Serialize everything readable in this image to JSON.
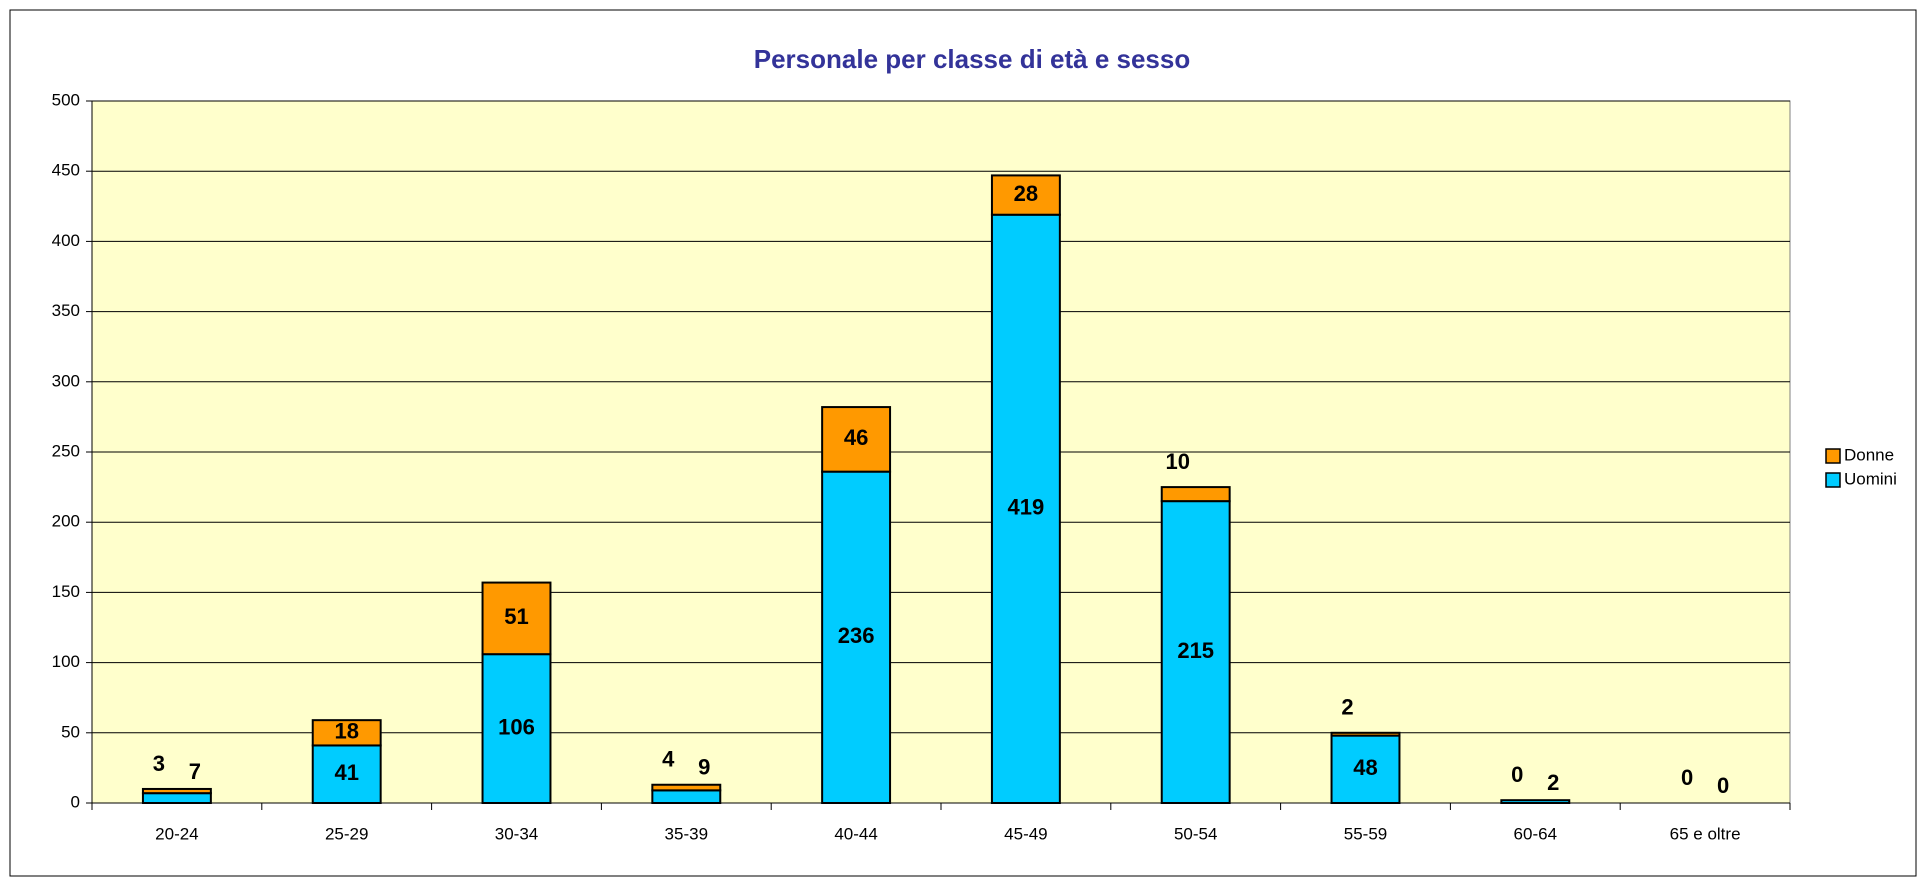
{
  "chart_data": {
    "type": "stacked_bar",
    "title": "Personale per classe di età e sesso",
    "categories": [
      "20-24",
      "25-29",
      "30-34",
      "35-39",
      "40-44",
      "45-49",
      "50-54",
      "55-59",
      "60-64",
      "65 e oltre"
    ],
    "series": [
      {
        "name": "Uomini",
        "color": "#00ccff",
        "values": [
          7,
          41,
          106,
          9,
          236,
          419,
          215,
          48,
          2,
          0
        ]
      },
      {
        "name": "Donne",
        "color": "#ff9900",
        "values": [
          3,
          18,
          51,
          4,
          46,
          28,
          10,
          2,
          0,
          0
        ]
      }
    ],
    "ylim": [
      0,
      500
    ],
    "yticks": [
      0,
      50,
      100,
      150,
      200,
      250,
      300,
      350,
      400,
      450,
      500
    ],
    "grid": true,
    "legend": "right"
  }
}
